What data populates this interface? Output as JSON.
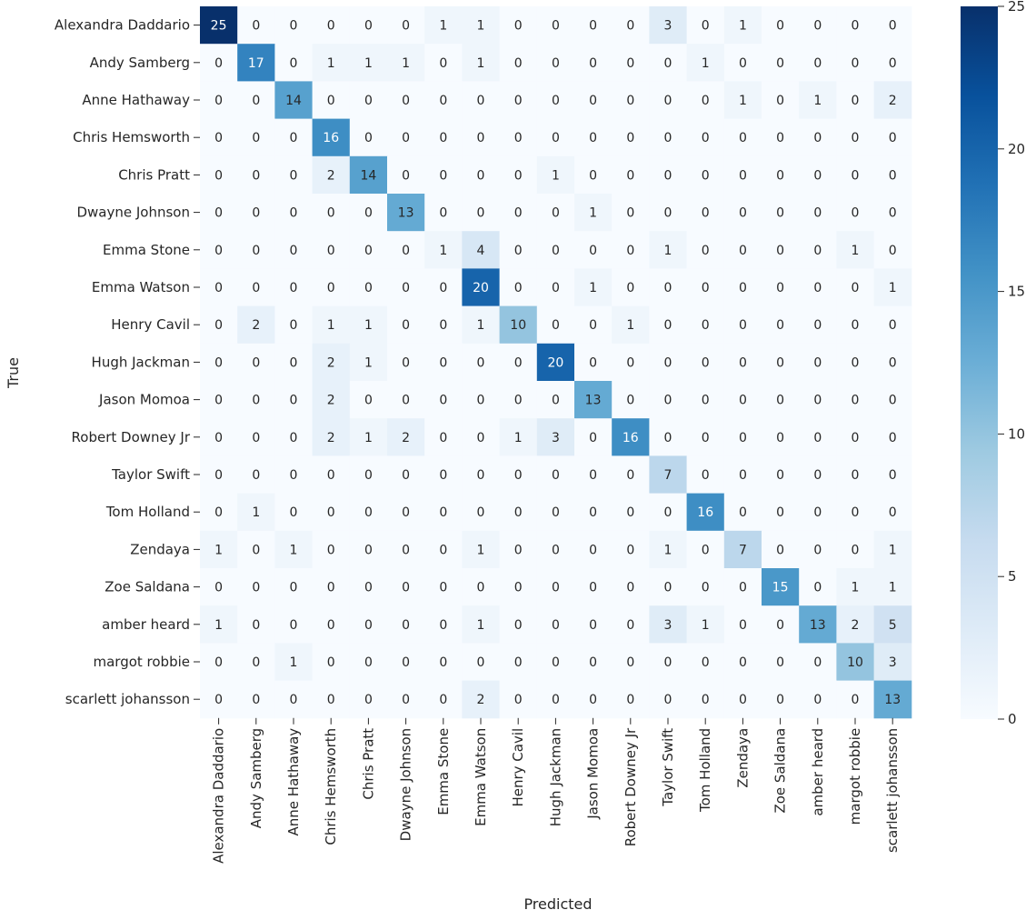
{
  "chart_data": {
    "type": "heatmap",
    "title": "",
    "xlabel": "Predicted",
    "ylabel": "True",
    "rows": [
      "Alexandra Daddario",
      "Andy Samberg",
      "Anne Hathaway",
      "Chris Hemsworth",
      "Chris Pratt",
      "Dwayne Johnson",
      "Emma Stone",
      "Emma Watson",
      "Henry Cavil",
      "Hugh Jackman",
      "Jason Momoa",
      "Robert Downey Jr",
      "Taylor Swift",
      "Tom Holland",
      "Zendaya",
      "Zoe Saldana",
      "amber heard",
      "margot robbie",
      "scarlett johansson"
    ],
    "columns": [
      "Alexandra Daddario",
      "Andy Samberg",
      "Anne Hathaway",
      "Chris Hemsworth",
      "Chris Pratt",
      "Dwayne Johnson",
      "Emma Stone",
      "Emma Watson",
      "Henry Cavil",
      "Hugh Jackman",
      "Jason Momoa",
      "Robert Downey Jr",
      "Taylor Swift",
      "Tom Holland",
      "Zendaya",
      "Zoe Saldana",
      "amber heard",
      "margot robbie",
      "scarlett johansson"
    ],
    "matrix": [
      [
        25,
        0,
        0,
        0,
        0,
        0,
        1,
        1,
        0,
        0,
        0,
        0,
        3,
        0,
        1,
        0,
        0,
        0,
        0
      ],
      [
        0,
        17,
        0,
        1,
        1,
        1,
        0,
        1,
        0,
        0,
        0,
        0,
        0,
        1,
        0,
        0,
        0,
        0,
        0
      ],
      [
        0,
        0,
        14,
        0,
        0,
        0,
        0,
        0,
        0,
        0,
        0,
        0,
        0,
        0,
        1,
        0,
        1,
        0,
        2
      ],
      [
        0,
        0,
        0,
        16,
        0,
        0,
        0,
        0,
        0,
        0,
        0,
        0,
        0,
        0,
        0,
        0,
        0,
        0,
        0
      ],
      [
        0,
        0,
        0,
        2,
        14,
        0,
        0,
        0,
        0,
        1,
        0,
        0,
        0,
        0,
        0,
        0,
        0,
        0,
        0
      ],
      [
        0,
        0,
        0,
        0,
        0,
        13,
        0,
        0,
        0,
        0,
        1,
        0,
        0,
        0,
        0,
        0,
        0,
        0,
        0
      ],
      [
        0,
        0,
        0,
        0,
        0,
        0,
        1,
        4,
        0,
        0,
        0,
        0,
        1,
        0,
        0,
        0,
        0,
        1,
        0
      ],
      [
        0,
        0,
        0,
        0,
        0,
        0,
        0,
        20,
        0,
        0,
        1,
        0,
        0,
        0,
        0,
        0,
        0,
        0,
        1
      ],
      [
        0,
        2,
        0,
        1,
        1,
        0,
        0,
        1,
        10,
        0,
        0,
        1,
        0,
        0,
        0,
        0,
        0,
        0,
        0
      ],
      [
        0,
        0,
        0,
        2,
        1,
        0,
        0,
        0,
        0,
        20,
        0,
        0,
        0,
        0,
        0,
        0,
        0,
        0,
        0
      ],
      [
        0,
        0,
        0,
        2,
        0,
        0,
        0,
        0,
        0,
        0,
        13,
        0,
        0,
        0,
        0,
        0,
        0,
        0,
        0
      ],
      [
        0,
        0,
        0,
        2,
        1,
        2,
        0,
        0,
        1,
        3,
        0,
        16,
        0,
        0,
        0,
        0,
        0,
        0,
        0
      ],
      [
        0,
        0,
        0,
        0,
        0,
        0,
        0,
        0,
        0,
        0,
        0,
        0,
        7,
        0,
        0,
        0,
        0,
        0,
        0
      ],
      [
        0,
        1,
        0,
        0,
        0,
        0,
        0,
        0,
        0,
        0,
        0,
        0,
        0,
        16,
        0,
        0,
        0,
        0,
        0
      ],
      [
        1,
        0,
        1,
        0,
        0,
        0,
        0,
        1,
        0,
        0,
        0,
        0,
        1,
        0,
        7,
        0,
        0,
        0,
        1
      ],
      [
        0,
        0,
        0,
        0,
        0,
        0,
        0,
        0,
        0,
        0,
        0,
        0,
        0,
        0,
        0,
        15,
        0,
        1,
        1
      ],
      [
        1,
        0,
        0,
        0,
        0,
        0,
        0,
        1,
        0,
        0,
        0,
        0,
        3,
        1,
        0,
        0,
        13,
        2,
        5
      ],
      [
        0,
        0,
        1,
        0,
        0,
        0,
        0,
        0,
        0,
        0,
        0,
        0,
        0,
        0,
        0,
        0,
        0,
        10,
        3
      ],
      [
        0,
        0,
        0,
        0,
        0,
        0,
        0,
        2,
        0,
        0,
        0,
        0,
        0,
        0,
        0,
        0,
        0,
        0,
        13
      ]
    ],
    "colorbar": {
      "min": 0,
      "max": 25,
      "ticks": [
        0,
        5,
        10,
        15,
        20,
        25
      ]
    },
    "colormap": [
      "#f7fbff",
      "#deebf7",
      "#c6dbef",
      "#9ecae1",
      "#6baed6",
      "#4292c6",
      "#2171b5",
      "#08519c",
      "#08306b"
    ],
    "text_color_light": "#ffffff",
    "text_color_dark": "#262626"
  }
}
